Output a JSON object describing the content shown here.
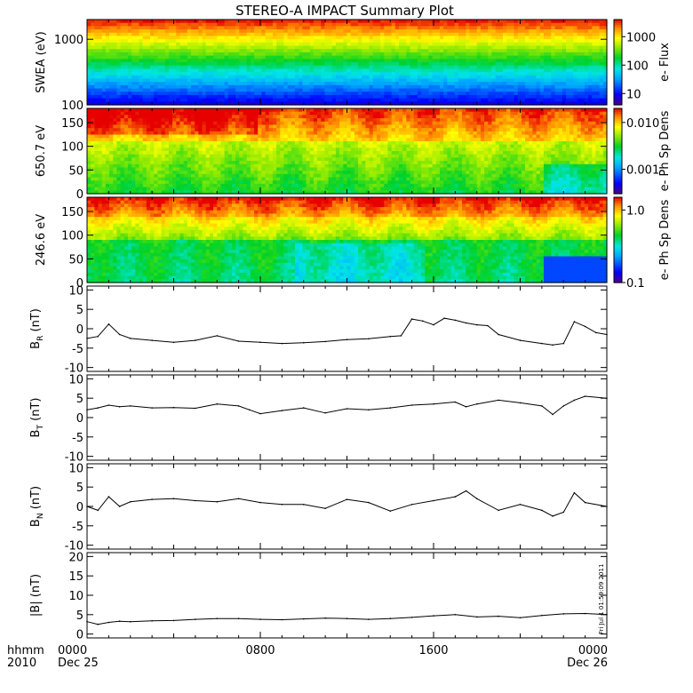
{
  "title": "STEREO-A IMPACT Summary Plot",
  "footer": {
    "row1_label": "hhmm",
    "row2_label": "2010",
    "ticks": [
      {
        "hhmm": "0000",
        "date": "Dec 25"
      },
      {
        "hhmm": "0800",
        "date": ""
      },
      {
        "hhmm": "1600",
        "date": ""
      },
      {
        "hhmm": "0000",
        "date": "Dec 26"
      }
    ]
  },
  "stamp": "Fri Jul  1 01:59:09 2011",
  "chart_data": [
    {
      "type": "heatmap",
      "id": "swea",
      "ylabel": "SWEA (eV)",
      "yscale": "log",
      "ylim": [
        100,
        2000
      ],
      "yticks": [
        {
          "v": 100,
          "label": "100"
        },
        {
          "v": 1000,
          "label": "1000"
        }
      ],
      "colorbar": {
        "label": "e- Flux",
        "scale": "log",
        "range": [
          4,
          4000
        ],
        "ticks": [
          {
            "v": 10,
            "label": "10"
          },
          {
            "v": 100,
            "label": "100"
          },
          {
            "v": 1000,
            "label": "1000"
          }
        ]
      }
    },
    {
      "type": "heatmap",
      "id": "pad650",
      "ylabel": "650.7 eV",
      "ylim": [
        0,
        180
      ],
      "yticks": [
        {
          "v": 0,
          "label": "0"
        },
        {
          "v": 50,
          "label": "50"
        },
        {
          "v": 100,
          "label": "100"
        },
        {
          "v": 150,
          "label": "150"
        }
      ],
      "colorbar": {
        "label": "e- Ph Sp Dens",
        "scale": "log",
        "range": [
          0.0003,
          0.02
        ],
        "ticks": [
          {
            "v": 0.001,
            "label": "0.001"
          },
          {
            "v": 0.01,
            "label": "0.010"
          }
        ]
      }
    },
    {
      "type": "heatmap",
      "id": "pad246",
      "ylabel": "246.6 eV",
      "ylim": [
        0,
        180
      ],
      "yticks": [
        {
          "v": 0,
          "label": "0"
        },
        {
          "v": 50,
          "label": "50"
        },
        {
          "v": 100,
          "label": "100"
        },
        {
          "v": 150,
          "label": "150"
        }
      ],
      "colorbar": {
        "label": "e- Ph Sp Dens",
        "scale": "log",
        "range": [
          0.1,
          1.5
        ],
        "ticks": [
          {
            "v": 0.1,
            "label": "0.1"
          },
          {
            "v": 1.0,
            "label": "1.0"
          }
        ]
      }
    },
    {
      "type": "line",
      "id": "br",
      "ylabel_main": "B",
      "ylabel_sub": "R",
      "ylabel_unit": " (nT)",
      "ylim": [
        -11,
        11
      ],
      "yticks": [
        {
          "v": -10,
          "label": "-10"
        },
        {
          "v": -5,
          "label": "-5"
        },
        {
          "v": 0,
          "label": "0"
        },
        {
          "v": 5,
          "label": "5"
        },
        {
          "v": 10,
          "label": "10"
        }
      ],
      "x": [
        0,
        0.5,
        1,
        1.5,
        2,
        3,
        4,
        5,
        6,
        7,
        8,
        9,
        10,
        11,
        12,
        13,
        14,
        14.5,
        15,
        15.5,
        16,
        16.5,
        17,
        17.5,
        18,
        18.5,
        19,
        20,
        21,
        21.5,
        22,
        22.5,
        23,
        23.5,
        24
      ],
      "values": [
        -2.5,
        -2,
        1.2,
        -1.5,
        -2.5,
        -3,
        -3.5,
        -3,
        -1.8,
        -3.2,
        -3.5,
        -3.8,
        -3.6,
        -3.3,
        -2.8,
        -2.6,
        -2,
        -1.8,
        2.5,
        2,
        1,
        2.7,
        2.2,
        1.5,
        1,
        0.8,
        -1.5,
        -3,
        -3.8,
        -4.2,
        -3.8,
        1.8,
        0.6,
        -1,
        -1.5
      ]
    },
    {
      "type": "line",
      "id": "bt",
      "ylabel_main": "B",
      "ylabel_sub": "T",
      "ylabel_unit": " (nT)",
      "ylim": [
        -11,
        11
      ],
      "yticks": [
        {
          "v": -10,
          "label": "-10"
        },
        {
          "v": -5,
          "label": "-5"
        },
        {
          "v": 0,
          "label": "0"
        },
        {
          "v": 5,
          "label": "5"
        },
        {
          "v": 10,
          "label": "10"
        }
      ],
      "x": [
        0,
        0.5,
        1,
        1.5,
        2,
        3,
        4,
        5,
        6,
        7,
        7.5,
        8,
        9,
        10,
        11,
        12,
        13,
        14,
        15,
        16,
        17,
        17.5,
        18,
        19,
        20,
        21,
        21.5,
        22,
        22.5,
        23,
        24
      ],
      "values": [
        2,
        2.5,
        3.2,
        2.8,
        3,
        2.5,
        2.6,
        2.4,
        3.5,
        3,
        2,
        1,
        1.8,
        2.5,
        1.2,
        2.3,
        2,
        2.5,
        3.2,
        3.5,
        4,
        2.8,
        3.5,
        4.5,
        3.8,
        3,
        0.8,
        3,
        4.5,
        5.5,
        5
      ]
    },
    {
      "type": "line",
      "id": "bn",
      "ylabel_main": "B",
      "ylabel_sub": "N",
      "ylabel_unit": " (nT)",
      "ylim": [
        -11,
        11
      ],
      "yticks": [
        {
          "v": -10,
          "label": "-10"
        },
        {
          "v": -5,
          "label": "-5"
        },
        {
          "v": 0,
          "label": "0"
        },
        {
          "v": 5,
          "label": "5"
        },
        {
          "v": 10,
          "label": "10"
        }
      ],
      "x": [
        0,
        0.5,
        1,
        1.5,
        2,
        3,
        4,
        5,
        6,
        7,
        8,
        9,
        10,
        11,
        12,
        13,
        14,
        15,
        16,
        17,
        17.5,
        18,
        19,
        20,
        21,
        21.5,
        22,
        22.5,
        23,
        24
      ],
      "values": [
        0,
        -1,
        2.5,
        0,
        1.2,
        1.8,
        2,
        1.5,
        1.2,
        2,
        1,
        0.5,
        0.5,
        -0.5,
        1.8,
        1,
        -1.2,
        0.5,
        1.5,
        2.5,
        4,
        2,
        -1,
        0.5,
        -1,
        -2.5,
        -1.5,
        3.5,
        1,
        0
      ]
    },
    {
      "type": "line",
      "id": "bmag",
      "ylabel_main": "|B|",
      "ylabel_sub": "",
      "ylabel_unit": " (nT)",
      "ylim": [
        -1,
        21
      ],
      "yticks": [
        {
          "v": 0,
          "label": "0"
        },
        {
          "v": 5,
          "label": "5"
        },
        {
          "v": 10,
          "label": "10"
        },
        {
          "v": 15,
          "label": "15"
        },
        {
          "v": 20,
          "label": "20"
        }
      ],
      "x": [
        0,
        0.5,
        1,
        1.5,
        2,
        3,
        4,
        5,
        6,
        7,
        8,
        9,
        10,
        11,
        12,
        13,
        14,
        15,
        16,
        17,
        18,
        19,
        20,
        21,
        22,
        23,
        24
      ],
      "values": [
        3.2,
        2.5,
        3,
        3.3,
        3.2,
        3.4,
        3.5,
        3.8,
        4,
        4,
        3.8,
        3.7,
        3.9,
        4.1,
        4,
        3.8,
        4,
        4.3,
        4.7,
        5,
        4.4,
        4.6,
        4.2,
        4.8,
        5.2,
        5.3,
        5
      ]
    }
  ]
}
